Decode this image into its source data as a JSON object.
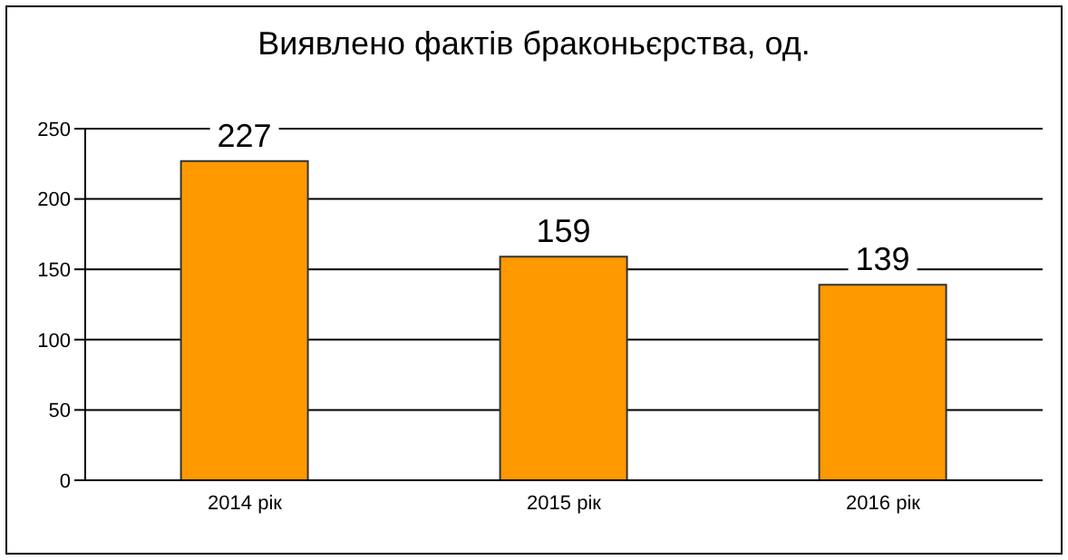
{
  "chart_data": {
    "type": "bar",
    "title": "Виявлено фактів браконьєрства, од.",
    "categories": [
      "2014 рік",
      "2015 рік",
      "2016 рік"
    ],
    "values": [
      227,
      159,
      139
    ],
    "color": "#ff9900",
    "ylim": [
      0,
      250
    ],
    "yticks": [
      0,
      50,
      100,
      150,
      200,
      250
    ],
    "grid": "y",
    "data_labels": true
  }
}
